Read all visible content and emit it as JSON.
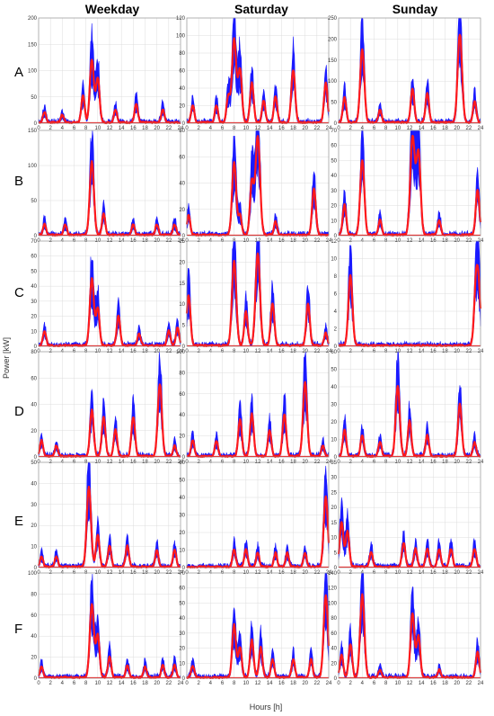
{
  "figure": {
    "xlabel": "Hours [h]",
    "ylabel": "Power [kW]",
    "columns": [
      "Weekday",
      "Saturday",
      "Sunday"
    ],
    "rows": [
      "A",
      "B",
      "C",
      "D",
      "E",
      "F"
    ],
    "colors": {
      "band": "#1a1aff",
      "mean": "#ff1a1a",
      "baseline": "#ff0000"
    }
  },
  "chart_data": {
    "type": "line",
    "x_ticks": [
      0,
      2,
      4,
      6,
      8,
      10,
      12,
      14,
      16,
      18,
      20,
      22,
      24
    ],
    "xlim": [
      0,
      24
    ],
    "panels": [
      {
        "row": "A",
        "column": "Weekday",
        "ylim": [
          0,
          200
        ],
        "yticks": [
          0,
          50,
          100,
          150,
          200
        ],
        "peaks": [
          [
            1,
            20
          ],
          [
            4,
            15
          ],
          [
            7.5,
            50
          ],
          [
            9,
            120
          ],
          [
            10,
            85
          ],
          [
            13,
            25
          ],
          [
            16.5,
            35
          ],
          [
            21,
            25
          ]
        ]
      },
      {
        "row": "A",
        "column": "Saturday",
        "ylim": [
          0,
          120
        ],
        "yticks": [
          0,
          20,
          40,
          60,
          80,
          100,
          120
        ],
        "peaks": [
          [
            1,
            20
          ],
          [
            5,
            20
          ],
          [
            7,
            30
          ],
          [
            8,
            95
          ],
          [
            9,
            60
          ],
          [
            11,
            45
          ],
          [
            13,
            25
          ],
          [
            15,
            30
          ],
          [
            18,
            60
          ],
          [
            23.5,
            45
          ]
        ]
      },
      {
        "row": "A",
        "column": "Sunday",
        "ylim": [
          0,
          250
        ],
        "yticks": [
          0,
          50,
          100,
          150,
          200,
          250
        ],
        "peaks": [
          [
            1,
            60
          ],
          [
            4,
            175
          ],
          [
            7,
            30
          ],
          [
            12.5,
            80
          ],
          [
            15,
            70
          ],
          [
            20.5,
            210
          ],
          [
            23,
            50
          ]
        ]
      },
      {
        "row": "B",
        "column": "Weekday",
        "ylim": [
          0,
          150
        ],
        "yticks": [
          0,
          50,
          100,
          150
        ],
        "peaks": [
          [
            1,
            15
          ],
          [
            4.5,
            15
          ],
          [
            9,
            105
          ],
          [
            11,
            30
          ],
          [
            16,
            15
          ],
          [
            20,
            15
          ],
          [
            23,
            15
          ]
        ]
      },
      {
        "row": "B",
        "column": "Saturday",
        "ylim": [
          0,
          80
        ],
        "yticks": [
          0,
          20,
          40,
          60,
          80
        ],
        "peaks": [
          [
            0.3,
            15
          ],
          [
            8,
            55
          ],
          [
            9,
            15
          ],
          [
            11,
            40
          ],
          [
            12,
            75
          ],
          [
            15,
            10
          ],
          [
            21.5,
            35
          ]
        ]
      },
      {
        "row": "B",
        "column": "Sunday",
        "ylim": [
          0,
          70
        ],
        "yticks": [
          0,
          10,
          20,
          30,
          40,
          50,
          60,
          70
        ],
        "peaks": [
          [
            1,
            20
          ],
          [
            4,
            50
          ],
          [
            7,
            10
          ],
          [
            12.5,
            65
          ],
          [
            13.5,
            55
          ],
          [
            17,
            10
          ],
          [
            23.5,
            30
          ]
        ]
      },
      {
        "row": "C",
        "column": "Weekday",
        "ylim": [
          0,
          70
        ],
        "yticks": [
          0,
          10,
          20,
          30,
          40,
          50,
          60,
          70
        ],
        "peaks": [
          [
            1,
            10
          ],
          [
            9,
            45
          ],
          [
            10,
            25
          ],
          [
            13.5,
            20
          ],
          [
            17,
            8
          ],
          [
            22,
            10
          ],
          [
            23.5,
            12
          ]
        ]
      },
      {
        "row": "C",
        "column": "Saturday",
        "ylim": [
          0,
          25
        ],
        "yticks": [
          0,
          5,
          10,
          15,
          20,
          25
        ],
        "peaks": [
          [
            0.3,
            12
          ],
          [
            8,
            20
          ],
          [
            10,
            8
          ],
          [
            12,
            22
          ],
          [
            14.5,
            10
          ],
          [
            20.5,
            10
          ],
          [
            23.5,
            3
          ]
        ]
      },
      {
        "row": "C",
        "column": "Sunday",
        "ylim": [
          0,
          12
        ],
        "yticks": [
          0,
          2,
          4,
          6,
          8,
          10,
          12
        ],
        "peaks": [
          [
            2,
            8
          ],
          [
            23.3,
            8
          ],
          [
            23.8,
            4
          ]
        ]
      },
      {
        "row": "D",
        "column": "Weekday",
        "ylim": [
          0,
          80
        ],
        "yticks": [
          0,
          20,
          40,
          60,
          80
        ],
        "peaks": [
          [
            0.5,
            12
          ],
          [
            3,
            8
          ],
          [
            9,
            35
          ],
          [
            11,
            30
          ],
          [
            13,
            20
          ],
          [
            16,
            30
          ],
          [
            20.5,
            55
          ],
          [
            23,
            8
          ]
        ]
      },
      {
        "row": "D",
        "column": "Saturday",
        "ylim": [
          0,
          100
        ],
        "yticks": [
          0,
          20,
          40,
          60,
          80,
          100
        ],
        "peaks": [
          [
            1,
            15
          ],
          [
            5,
            15
          ],
          [
            9,
            35
          ],
          [
            11,
            40
          ],
          [
            14,
            25
          ],
          [
            16.5,
            40
          ],
          [
            20,
            70
          ],
          [
            23,
            10
          ]
        ]
      },
      {
        "row": "D",
        "column": "Sunday",
        "ylim": [
          0,
          60
        ],
        "yticks": [
          0,
          10,
          20,
          30,
          40,
          50,
          60
        ],
        "peaks": [
          [
            1,
            15
          ],
          [
            4,
            12
          ],
          [
            7,
            8
          ],
          [
            10,
            40
          ],
          [
            12,
            20
          ],
          [
            15,
            12
          ],
          [
            20.5,
            30
          ],
          [
            23,
            8
          ]
        ]
      },
      {
        "row": "E",
        "column": "Weekday",
        "ylim": [
          0,
          50
        ],
        "yticks": [
          0,
          10,
          20,
          30,
          40,
          50
        ],
        "peaks": [
          [
            0.5,
            5
          ],
          [
            3,
            5
          ],
          [
            8.5,
            38
          ],
          [
            10,
            15
          ],
          [
            12,
            10
          ],
          [
            15,
            10
          ],
          [
            20,
            8
          ],
          [
            23,
            8
          ]
        ]
      },
      {
        "row": "E",
        "column": "Saturday",
        "ylim": [
          0,
          60
        ],
        "yticks": [
          0,
          10,
          20,
          30,
          40,
          50,
          60
        ],
        "peaks": [
          [
            8,
            10
          ],
          [
            10,
            10
          ],
          [
            12,
            8
          ],
          [
            15,
            8
          ],
          [
            17,
            8
          ],
          [
            20,
            8
          ],
          [
            23.5,
            40
          ]
        ]
      },
      {
        "row": "E",
        "column": "Sunday",
        "ylim": [
          0,
          35
        ],
        "yticks": [
          0,
          5,
          10,
          15,
          20,
          25,
          30,
          35
        ],
        "peaks": [
          [
            0.5,
            15
          ],
          [
            1.5,
            12
          ],
          [
            5.5,
            5
          ],
          [
            11,
            8
          ],
          [
            13,
            6
          ],
          [
            15,
            6
          ],
          [
            17,
            6
          ],
          [
            19,
            6
          ],
          [
            23,
            6
          ]
        ]
      },
      {
        "row": "F",
        "column": "Weekday",
        "ylim": [
          0,
          100
        ],
        "yticks": [
          0,
          20,
          40,
          60,
          80,
          100
        ],
        "peaks": [
          [
            0.5,
            10
          ],
          [
            9,
            70
          ],
          [
            10,
            40
          ],
          [
            12,
            20
          ],
          [
            15,
            12
          ],
          [
            18,
            10
          ],
          [
            21,
            12
          ],
          [
            23,
            12
          ]
        ]
      },
      {
        "row": "F",
        "column": "Saturday",
        "ylim": [
          0,
          70
        ],
        "yticks": [
          0,
          10,
          20,
          30,
          40,
          50,
          60,
          70
        ],
        "peaks": [
          [
            1,
            8
          ],
          [
            8,
            35
          ],
          [
            9,
            20
          ],
          [
            11,
            25
          ],
          [
            12.5,
            20
          ],
          [
            14.5,
            12
          ],
          [
            18,
            12
          ],
          [
            21,
            12
          ],
          [
            23.5,
            55
          ]
        ]
      },
      {
        "row": "F",
        "column": "Sunday",
        "ylim": [
          0,
          140
        ],
        "yticks": [
          0,
          20,
          40,
          60,
          80,
          100,
          120,
          140
        ],
        "peaks": [
          [
            0.5,
            30
          ],
          [
            2,
            45
          ],
          [
            4,
            110
          ],
          [
            7,
            10
          ],
          [
            12.5,
            85
          ],
          [
            13.5,
            55
          ],
          [
            17,
            10
          ],
          [
            23.5,
            35
          ]
        ]
      }
    ]
  }
}
